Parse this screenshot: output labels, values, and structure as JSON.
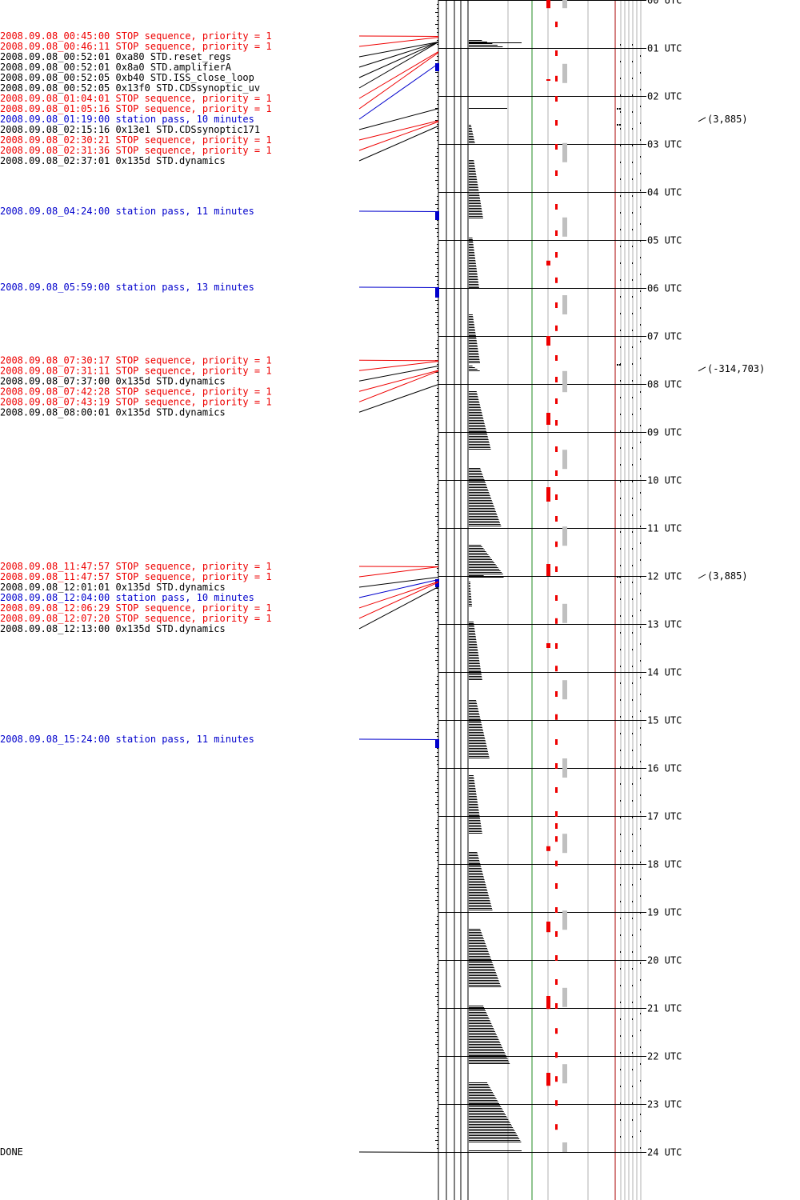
{
  "colors": {
    "stop": "#ee0000",
    "command": "#000000",
    "pass": "#0000cc",
    "frame": "#000000",
    "gray_marker": "#c0c0c0",
    "green_line": "#228b22",
    "red_line": "#aa0000",
    "grid_gray": "#b0b0b0"
  },
  "chart_data": {
    "type": "timeline",
    "date": "2008.09.08",
    "hour_labels": [
      "00 UTC",
      "01 UTC",
      "02 UTC",
      "03 UTC",
      "04 UTC",
      "05 UTC",
      "06 UTC",
      "07 UTC",
      "08 UTC",
      "09 UTC",
      "10 UTC",
      "11 UTC",
      "12 UTC",
      "13 UTC",
      "14 UTC",
      "15 UTC",
      "16 UTC",
      "17 UTC",
      "18 UTC",
      "19 UTC",
      "20 UTC",
      "21 UTC",
      "22 UTC",
      "23 UTC",
      "24 UTC"
    ],
    "events": [
      {
        "text": "2008.09.08_00:45:00 STOP sequence, priority = 1",
        "kind": "stop",
        "hour": 0.75
      },
      {
        "text": "2008.09.08_00:46:11 STOP sequence, priority = 1",
        "kind": "stop",
        "hour": 0.7697
      },
      {
        "text": "2008.09.08_00:52:01  0xa80 STD.reset_regs",
        "kind": "command",
        "hour": 0.8669
      },
      {
        "text": "2008.09.08_00:52:01  0x8a0 STD.amplifierA",
        "kind": "command",
        "hour": 0.8669
      },
      {
        "text": "2008.09.08_00:52:05  0xb40 STD.ISS_close_loop",
        "kind": "command",
        "hour": 0.8681
      },
      {
        "text": "2008.09.08_00:52:05 0x13f0 STD.CDSsynoptic_uv",
        "kind": "command",
        "hour": 0.8681
      },
      {
        "text": "2008.09.08_01:04:01 STOP sequence, priority = 1",
        "kind": "stop",
        "hour": 1.0669
      },
      {
        "text": "2008.09.08_01:05:16 STOP sequence, priority = 1",
        "kind": "stop",
        "hour": 1.0878
      },
      {
        "text": "2008.09.08_01:19:00 station pass, 10 minutes",
        "kind": "pass",
        "hour": 1.3167,
        "duration_min": 10
      },
      {
        "text": "2008.09.08_02:15:16 0x13e1 STD.CDSsynoptic171",
        "kind": "command",
        "hour": 2.2544
      },
      {
        "text": "2008.09.08_02:30:21 STOP sequence, priority = 1",
        "kind": "stop",
        "hour": 2.5058
      },
      {
        "text": "2008.09.08_02:31:36 STOP sequence, priority = 1",
        "kind": "stop",
        "hour": 2.5267
      },
      {
        "text": "2008.09.08_02:37:01 0x135d STD.dynamics",
        "kind": "command",
        "hour": 2.6169
      },
      {
        "text": "2008.09.08_04:24:00 station pass, 11 minutes",
        "kind": "pass",
        "hour": 4.4,
        "duration_min": 11
      },
      {
        "text": "2008.09.08_05:59:00 station pass, 13 minutes",
        "kind": "pass",
        "hour": 5.9833,
        "duration_min": 13
      },
      {
        "text": "2008.09.08_07:30:17 STOP sequence, priority = 1",
        "kind": "stop",
        "hour": 7.5047
      },
      {
        "text": "2008.09.08_07:31:11 STOP sequence, priority = 1",
        "kind": "stop",
        "hour": 7.5197
      },
      {
        "text": "2008.09.08_07:37:00 0x135d STD.dynamics",
        "kind": "command",
        "hour": 7.6167
      },
      {
        "text": "2008.09.08_07:42:28 STOP sequence, priority = 1",
        "kind": "stop",
        "hour": 7.7078
      },
      {
        "text": "2008.09.08_07:43:19 STOP sequence, priority = 1",
        "kind": "stop",
        "hour": 7.7219
      },
      {
        "text": "2008.09.08_08:00:01 0x135d STD.dynamics",
        "kind": "command",
        "hour": 8.0003
      },
      {
        "text": "2008.09.08_11:47:57 STOP sequence, priority = 1",
        "kind": "stop",
        "hour": 11.7992
      },
      {
        "text": "2008.09.08_11:47:57 STOP sequence, priority = 1",
        "kind": "stop",
        "hour": 11.7992
      },
      {
        "text": "2008.09.08_12:01:01 0x135d STD.dynamics",
        "kind": "command",
        "hour": 12.0169
      },
      {
        "text": "2008.09.08_12:04:00 station pass, 10 minutes",
        "kind": "pass",
        "hour": 12.0667,
        "duration_min": 10
      },
      {
        "text": "2008.09.08_12:06:29 STOP sequence, priority = 1",
        "kind": "stop",
        "hour": 12.1081
      },
      {
        "text": "2008.09.08_12:07:20 STOP sequence, priority = 1",
        "kind": "stop",
        "hour": 12.1222
      },
      {
        "text": "2008.09.08_12:13:00 0x135d STD.dynamics",
        "kind": "command",
        "hour": 12.2167
      },
      {
        "text": "2008.09.08_15:24:00 station pass, 11 minutes",
        "kind": "pass",
        "hour": 15.4,
        "duration_min": 11
      },
      {
        "text": "DONE",
        "kind": "command",
        "hour": 24.0
      }
    ],
    "annotations": [
      {
        "text": "(3,885)",
        "hour": 2.48
      },
      {
        "text": "(-314,703)",
        "hour": 7.68
      },
      {
        "text": "(3,885)",
        "hour": 12.0
      }
    ],
    "histogram_segments": [
      {
        "start": 0.83,
        "end": 0.98,
        "max_len": 45
      },
      {
        "start": 2.25,
        "end": 2.26,
        "max_len": 48
      },
      {
        "start": 2.6,
        "end": 3.0,
        "max_len": 8
      },
      {
        "start": 3.33,
        "end": 4.55,
        "max_len": 18
      },
      {
        "start": 4.95,
        "end": 6.0,
        "max_len": 13
      },
      {
        "start": 6.55,
        "end": 7.55,
        "max_len": 14
      },
      {
        "start": 7.62,
        "end": 7.72,
        "max_len": 14
      },
      {
        "start": 8.15,
        "end": 9.38,
        "max_len": 28
      },
      {
        "start": 9.75,
        "end": 10.98,
        "max_len": 41
      },
      {
        "start": 11.35,
        "end": 11.98,
        "max_len": 44
      },
      {
        "start": 11.98,
        "end": 12.02,
        "max_len": 46
      },
      {
        "start": 12.12,
        "end": 12.62,
        "max_len": 4
      },
      {
        "start": 12.95,
        "end": 14.18,
        "max_len": 17
      },
      {
        "start": 14.58,
        "end": 15.8,
        "max_len": 26
      },
      {
        "start": 16.15,
        "end": 17.38,
        "max_len": 17
      },
      {
        "start": 17.75,
        "end": 18.98,
        "max_len": 30
      },
      {
        "start": 19.35,
        "end": 20.58,
        "max_len": 41
      },
      {
        "start": 20.95,
        "end": 22.18,
        "max_len": 52
      },
      {
        "start": 22.55,
        "end": 23.8,
        "max_len": 66
      }
    ],
    "red_blocks": [
      {
        "start": 0.0,
        "end": 0.17
      },
      {
        "start": 1.65,
        "end": 1.67
      },
      {
        "start": 5.43,
        "end": 5.53
      },
      {
        "start": 7.0,
        "end": 7.2
      },
      {
        "start": 8.6,
        "end": 8.85
      },
      {
        "start": 10.15,
        "end": 10.45
      },
      {
        "start": 11.75,
        "end": 12.0
      },
      {
        "start": 13.4,
        "end": 13.5
      },
      {
        "start": 17.63,
        "end": 17.73
      },
      {
        "start": 19.2,
        "end": 19.42
      },
      {
        "start": 20.75,
        "end": 21.02
      },
      {
        "start": 22.35,
        "end": 22.62
      }
    ],
    "red_dashes": [
      0.5,
      1.1,
      1.63,
      2.05,
      2.55,
      3.05,
      3.6,
      4.3,
      4.85,
      5.3,
      5.83,
      6.35,
      6.83,
      7.45,
      7.9,
      8.35,
      8.8,
      9.35,
      9.85,
      10.35,
      10.8,
      11.33,
      11.85,
      12.45,
      12.93,
      13.45,
      13.92,
      14.45,
      14.93,
      15.45,
      15.95,
      16.45,
      16.95,
      17.2,
      17.47,
      17.98,
      18.45,
      18.95,
      19.45,
      19.95,
      20.45,
      20.95,
      21.47,
      21.97,
      22.47,
      22.97,
      23.47
    ],
    "gray_blocks": [
      {
        "start": 0.0,
        "end": 0.17
      },
      {
        "start": 1.33,
        "end": 1.73
      },
      {
        "start": 2.98,
        "end": 3.38
      },
      {
        "start": 4.53,
        "end": 4.93
      },
      {
        "start": 6.15,
        "end": 6.55
      },
      {
        "start": 7.73,
        "end": 8.17
      },
      {
        "start": 9.37,
        "end": 9.77
      },
      {
        "start": 10.97,
        "end": 11.37
      },
      {
        "start": 12.58,
        "end": 12.98
      },
      {
        "start": 14.17,
        "end": 14.57
      },
      {
        "start": 15.8,
        "end": 16.2
      },
      {
        "start": 17.37,
        "end": 17.77
      },
      {
        "start": 18.97,
        "end": 19.37
      },
      {
        "start": 20.58,
        "end": 20.98
      },
      {
        "start": 22.17,
        "end": 22.57
      },
      {
        "start": 23.8,
        "end": 24.0
      }
    ]
  }
}
